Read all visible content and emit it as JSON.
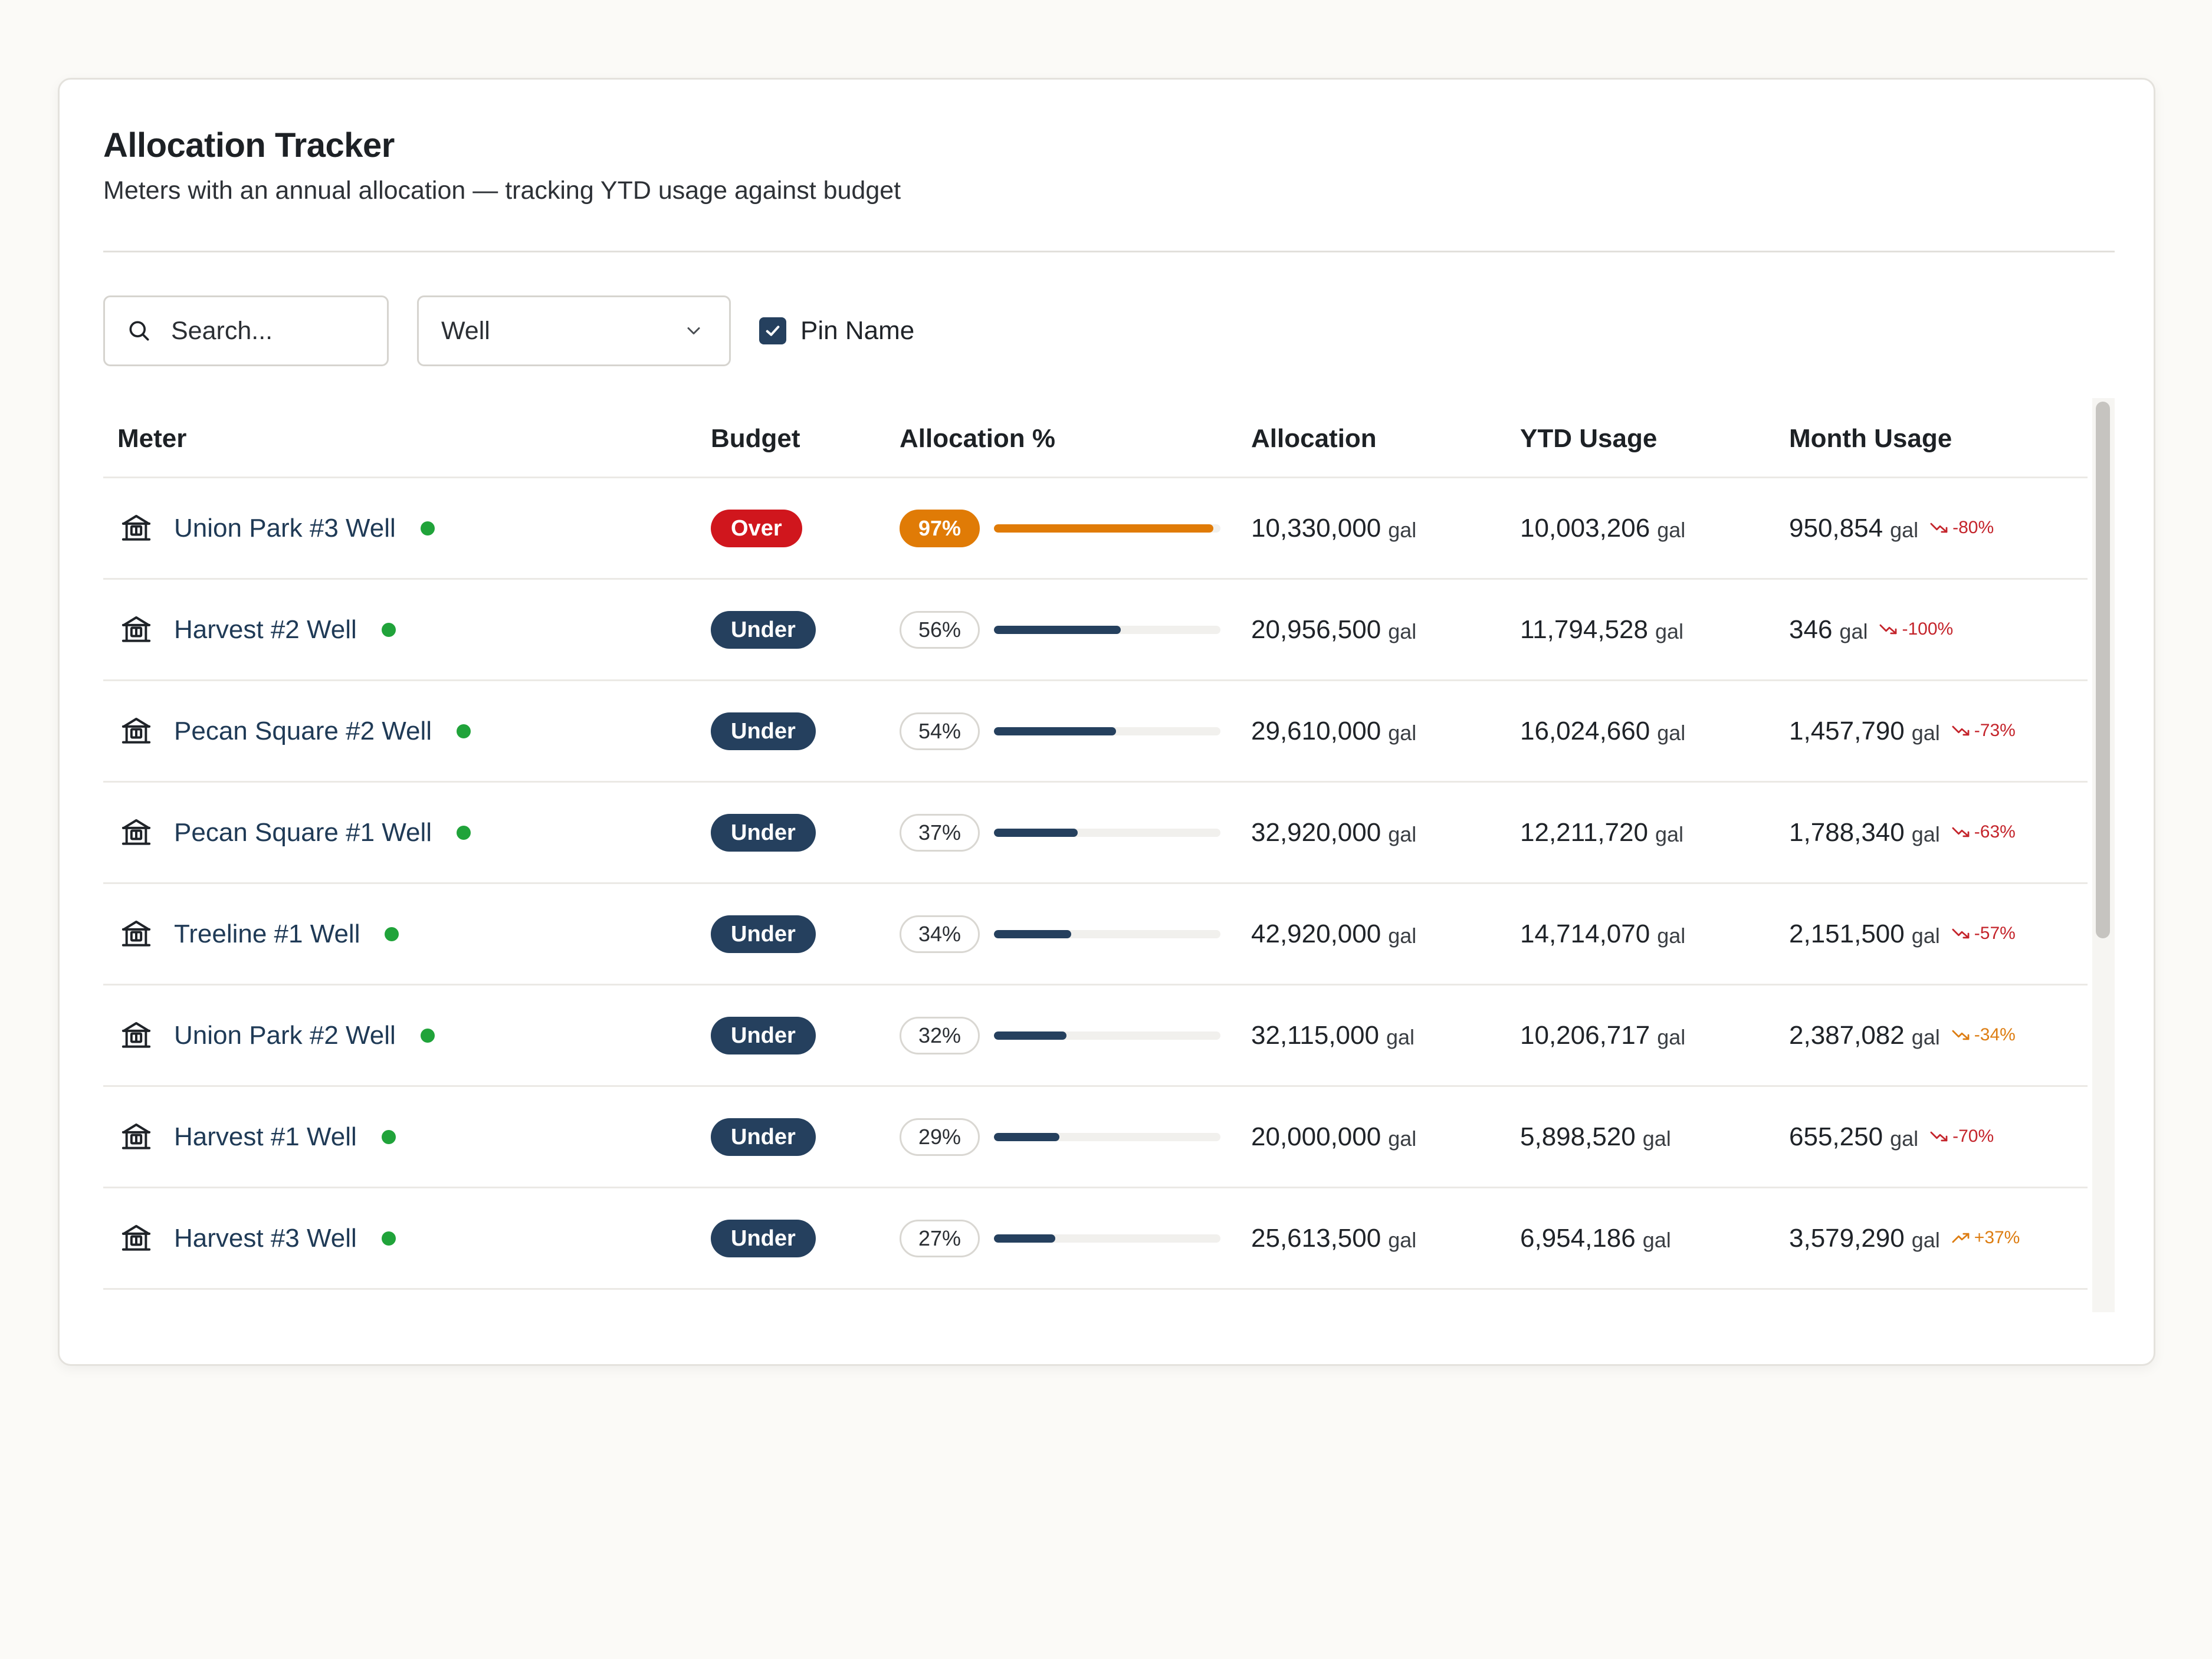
{
  "header": {
    "title": "Allocation Tracker",
    "subtitle": "Meters with an annual allocation — tracking YTD usage against budget"
  },
  "filters": {
    "search_placeholder": "Search...",
    "type_value": "Well",
    "pin_label": "Pin Name",
    "pin_checked": true
  },
  "table": {
    "columns": [
      "Meter",
      "Budget",
      "Allocation %",
      "Allocation",
      "YTD Usage",
      "Month Usage"
    ],
    "unit": "gal",
    "rows": [
      {
        "meter": "Union Park #3 Well",
        "budget": "Over",
        "pct_label": "97%",
        "pct": 97,
        "allocation": "10,330,000",
        "ytd": "10,003,206",
        "month": "950,854",
        "trend": "-80%",
        "trend_dir": "down"
      },
      {
        "meter": "Harvest #2 Well",
        "budget": "Under",
        "pct_label": "56%",
        "pct": 56,
        "allocation": "20,956,500",
        "ytd": "11,794,528",
        "month": "346",
        "trend": "-100%",
        "trend_dir": "down"
      },
      {
        "meter": "Pecan Square #2 Well",
        "budget": "Under",
        "pct_label": "54%",
        "pct": 54,
        "allocation": "29,610,000",
        "ytd": "16,024,660",
        "month": "1,457,790",
        "trend": "-73%",
        "trend_dir": "down"
      },
      {
        "meter": "Pecan Square #1 Well",
        "budget": "Under",
        "pct_label": "37%",
        "pct": 37,
        "allocation": "32,920,000",
        "ytd": "12,211,720",
        "month": "1,788,340",
        "trend": "-63%",
        "trend_dir": "down"
      },
      {
        "meter": "Treeline #1 Well",
        "budget": "Under",
        "pct_label": "34%",
        "pct": 34,
        "allocation": "42,920,000",
        "ytd": "14,714,070",
        "month": "2,151,500",
        "trend": "-57%",
        "trend_dir": "down"
      },
      {
        "meter": "Union Park #2 Well",
        "budget": "Under",
        "pct_label": "32%",
        "pct": 32,
        "allocation": "32,115,000",
        "ytd": "10,206,717",
        "month": "2,387,082",
        "trend": "-34%",
        "trend_dir": "warn-down"
      },
      {
        "meter": "Harvest #1 Well",
        "budget": "Under",
        "pct_label": "29%",
        "pct": 29,
        "allocation": "20,000,000",
        "ytd": "5,898,520",
        "month": "655,250",
        "trend": "-70%",
        "trend_dir": "down"
      },
      {
        "meter": "Harvest #3 Well",
        "budget": "Under",
        "pct_label": "27%",
        "pct": 27,
        "allocation": "25,613,500",
        "ytd": "6,954,186",
        "month": "3,579,290",
        "trend": "+37%",
        "trend_dir": "up"
      }
    ]
  },
  "icons": {
    "meter": "well-building-icon",
    "search": "search-icon",
    "dropdown": "chevron-down-icon",
    "check": "check-icon",
    "trend_down": "trend-down-icon",
    "trend_up": "trend-up-icon",
    "status": "status-dot"
  },
  "colors": {
    "over": "#d0161d",
    "under": "#25405e",
    "hot": "#e07b06",
    "trend_down": "#c4242b",
    "trend_warn": "#dd7d12",
    "status_ok": "#20a33a"
  }
}
